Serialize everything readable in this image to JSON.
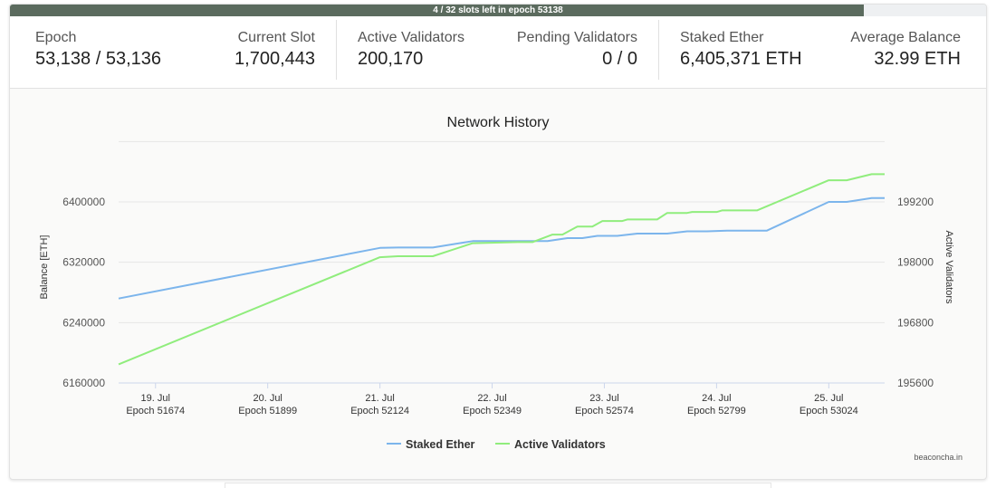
{
  "progress": {
    "label": "4 / 32 slots left in epoch 53138",
    "fraction": 0.875
  },
  "stats": {
    "epoch": {
      "label": "Epoch",
      "value": "53,138 / 53,136"
    },
    "current_slot": {
      "label": "Current Slot",
      "value": "1,700,443"
    },
    "active_validators": {
      "label": "Active Validators",
      "value": "200,170"
    },
    "pending_validators": {
      "label": "Pending Validators",
      "value": "0 / 0"
    },
    "staked_ether": {
      "label": "Staked Ether",
      "value": "6,405,371 ETH"
    },
    "average_balance": {
      "label": "Average Balance",
      "value": "32.99 ETH"
    }
  },
  "credit": "beaconcha.in",
  "colors": {
    "staked": "#7cb5ec",
    "validators": "#90ed7d",
    "progress": "#5b6b5e"
  },
  "chart_data": {
    "type": "line",
    "title": "Network History",
    "ylabel": "Balance [ETH]",
    "y2label": "Active Validators",
    "ylim": [
      6160000,
      6400000
    ],
    "y2lim": [
      195600,
      199200
    ],
    "y_ticks": [
      "6160000",
      "6240000",
      "6320000",
      "6400000"
    ],
    "y2_ticks": [
      "195600",
      "196800",
      "198000",
      "199200"
    ],
    "x_ticks": [
      {
        "date": "19. Jul",
        "epoch": "Epoch 51674"
      },
      {
        "date": "20. Jul",
        "epoch": "Epoch 51899"
      },
      {
        "date": "21. Jul",
        "epoch": "Epoch 52124"
      },
      {
        "date": "22. Jul",
        "epoch": "Epoch 52349"
      },
      {
        "date": "23. Jul",
        "epoch": "Epoch 52574"
      },
      {
        "date": "24. Jul",
        "epoch": "Epoch 52799"
      },
      {
        "date": "25. Jul",
        "epoch": "Epoch 53024"
      }
    ],
    "x_range": [
      51600,
      53136
    ],
    "grid": true,
    "legend": "bottom-center",
    "series": [
      {
        "name": "Staked Ether",
        "axis": "left",
        "points": [
          [
            51600,
            6272000
          ],
          [
            52124,
            6339000
          ],
          [
            52160,
            6339500
          ],
          [
            52230,
            6339500
          ],
          [
            52310,
            6348000
          ],
          [
            52400,
            6348000
          ],
          [
            52460,
            6348000
          ],
          [
            52500,
            6352000
          ],
          [
            52530,
            6352000
          ],
          [
            52560,
            6355000
          ],
          [
            52600,
            6355000
          ],
          [
            52640,
            6358000
          ],
          [
            52700,
            6358000
          ],
          [
            52740,
            6361000
          ],
          [
            52780,
            6361000
          ],
          [
            52820,
            6362000
          ],
          [
            52900,
            6362000
          ],
          [
            53024,
            6400000
          ],
          [
            53060,
            6400000
          ],
          [
            53110,
            6405000
          ],
          [
            53136,
            6405000
          ]
        ]
      },
      {
        "name": "Active Validators",
        "axis": "right",
        "points": [
          [
            51600,
            195970
          ],
          [
            52124,
            198100
          ],
          [
            52160,
            198120
          ],
          [
            52230,
            198120
          ],
          [
            52310,
            198380
          ],
          [
            52400,
            198400
          ],
          [
            52430,
            198400
          ],
          [
            52470,
            198550
          ],
          [
            52490,
            198550
          ],
          [
            52520,
            198710
          ],
          [
            52550,
            198710
          ],
          [
            52570,
            198820
          ],
          [
            52610,
            198820
          ],
          [
            52620,
            198850
          ],
          [
            52680,
            198850
          ],
          [
            52700,
            198980
          ],
          [
            52740,
            198980
          ],
          [
            52750,
            199000
          ],
          [
            52800,
            199000
          ],
          [
            52810,
            199030
          ],
          [
            52880,
            199030
          ],
          [
            53024,
            199630
          ],
          [
            53060,
            199630
          ],
          [
            53110,
            199750
          ],
          [
            53136,
            199750
          ]
        ]
      }
    ]
  }
}
